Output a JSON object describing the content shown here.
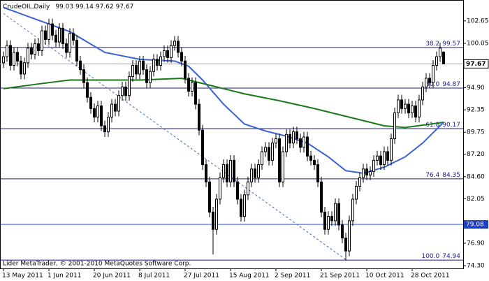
{
  "chart_data": {
    "type": "candlestick",
    "title": "CrudeOIL,Daily",
    "footer": "Lider MetaTrader, © 2001-2010 MetaQuotes Software Corp.",
    "categories": [
      "13 May 2011",
      null,
      null,
      null,
      null,
      null,
      null,
      null,
      null,
      null,
      null,
      null,
      null,
      "1 Jun 2011",
      null,
      null,
      null,
      null,
      null,
      null,
      null,
      null,
      null,
      null,
      null,
      null,
      "20 Jun 2011",
      null,
      null,
      null,
      null,
      null,
      null,
      null,
      null,
      null,
      null,
      null,
      null,
      "8 Jul 2011",
      null,
      null,
      null,
      null,
      null,
      null,
      null,
      null,
      null,
      null,
      null,
      null,
      "27 Jul 2011",
      null,
      null,
      null,
      null,
      null,
      null,
      null,
      null,
      null,
      null,
      null,
      null,
      "15 Aug 2011",
      null,
      null,
      null,
      null,
      null,
      null,
      null,
      null,
      null,
      null,
      null,
      null,
      "2 Sep 2011",
      null,
      null,
      null,
      null,
      null,
      null,
      null,
      null,
      null,
      null,
      null,
      null,
      "21 Sep 2011",
      null,
      null,
      null,
      null,
      null,
      null,
      null,
      null,
      null,
      null,
      null,
      null,
      "10 Oct 2011",
      null,
      null,
      null,
      null,
      null,
      null,
      null,
      null,
      null,
      null,
      null,
      null,
      "28 Oct 2011",
      null,
      null,
      null,
      null,
      null,
      null,
      null,
      null,
      null
    ],
    "ohlc": [
      [
        97.8,
        99.1,
        97.2,
        98.5
      ],
      [
        98.5,
        100.4,
        97.9,
        99.8
      ],
      [
        99.8,
        100.4,
        96.9,
        97.5
      ],
      [
        97.5,
        99.6,
        96.9,
        99.0
      ],
      [
        99.0,
        99.6,
        97.4,
        98.0
      ],
      [
        98.0,
        98.6,
        95.9,
        96.5
      ],
      [
        96.5,
        98.4,
        95.9,
        97.8
      ],
      [
        97.8,
        100.1,
        97.2,
        99.5
      ],
      [
        99.5,
        100.1,
        98.2,
        98.8
      ],
      [
        98.8,
        100.6,
        98.2,
        100.0
      ],
      [
        100.0,
        100.6,
        98.6,
        99.2
      ],
      [
        99.2,
        102.1,
        98.6,
        101.5
      ],
      [
        101.5,
        102.1,
        99.9,
        100.5
      ],
      [
        100.5,
        102.9,
        99.9,
        102.3
      ],
      [
        102.3,
        102.9,
        100.4,
        101.0
      ],
      [
        101.0,
        101.6,
        99.6,
        100.2
      ],
      [
        100.2,
        102.4,
        99.6,
        101.8
      ],
      [
        101.8,
        102.4,
        99.4,
        100.0
      ],
      [
        100.0,
        100.6,
        98.4,
        99.0
      ],
      [
        99.0,
        101.8,
        98.4,
        101.2
      ],
      [
        101.2,
        101.8,
        99.8,
        100.4
      ],
      [
        100.4,
        101.0,
        97.4,
        98.0
      ],
      [
        98.0,
        98.6,
        96.4,
        97.0
      ],
      [
        97.0,
        97.6,
        94.9,
        95.5
      ],
      [
        95.5,
        96.1,
        93.2,
        93.8
      ],
      [
        93.8,
        94.4,
        91.9,
        92.5
      ],
      [
        92.5,
        93.1,
        90.9,
        91.5
      ],
      [
        91.5,
        93.4,
        90.9,
        92.8
      ],
      [
        92.8,
        93.4,
        89.9,
        90.5
      ],
      [
        90.5,
        91.1,
        89.2,
        89.8
      ],
      [
        89.8,
        92.1,
        89.2,
        91.5
      ],
      [
        91.5,
        93.6,
        90.9,
        93.0
      ],
      [
        93.0,
        93.6,
        91.6,
        92.2
      ],
      [
        92.2,
        94.6,
        91.6,
        94.0
      ],
      [
        94.0,
        95.6,
        93.4,
        95.0
      ],
      [
        95.0,
        95.6,
        93.4,
        94.0
      ],
      [
        94.0,
        96.8,
        93.4,
        96.2
      ],
      [
        96.2,
        98.1,
        95.6,
        97.5
      ],
      [
        97.5,
        98.1,
        95.9,
        96.5
      ],
      [
        96.5,
        98.6,
        95.9,
        98.0
      ],
      [
        98.0,
        98.6,
        96.4,
        97.0
      ],
      [
        97.0,
        97.6,
        94.9,
        95.5
      ],
      [
        95.5,
        97.4,
        94.9,
        96.8
      ],
      [
        96.8,
        98.8,
        96.2,
        98.2
      ],
      [
        98.2,
        98.8,
        96.9,
        97.5
      ],
      [
        97.5,
        99.1,
        96.9,
        98.5
      ],
      [
        98.5,
        99.8,
        97.9,
        99.2
      ],
      [
        99.2,
        99.8,
        97.8,
        98.4
      ],
      [
        98.4,
        100.4,
        97.8,
        99.8
      ],
      [
        99.8,
        100.9,
        99.2,
        100.3
      ],
      [
        100.3,
        100.9,
        98.4,
        99.0
      ],
      [
        99.0,
        99.6,
        97.4,
        98.0
      ],
      [
        98.0,
        98.6,
        95.4,
        96.0
      ],
      [
        96.0,
        96.6,
        93.9,
        94.5
      ],
      [
        94.5,
        96.1,
        93.9,
        95.5
      ],
      [
        95.5,
        96.1,
        92.4,
        93.0
      ],
      [
        93.0,
        93.6,
        89.4,
        90.0
      ],
      [
        90.0,
        90.6,
        85.4,
        86.0
      ],
      [
        86.0,
        86.6,
        83.4,
        84.0
      ],
      [
        84.0,
        84.6,
        79.9,
        80.5
      ],
      [
        80.5,
        81.1,
        75.6,
        78.5
      ],
      [
        78.5,
        82.6,
        77.9,
        82.0
      ],
      [
        82.0,
        85.1,
        81.4,
        84.5
      ],
      [
        84.5,
        86.6,
        83.9,
        86.0
      ],
      [
        86.0,
        86.6,
        83.4,
        84.0
      ],
      [
        84.0,
        87.1,
        83.4,
        86.5
      ],
      [
        86.5,
        87.1,
        83.4,
        84.0
      ],
      [
        84.0,
        84.6,
        81.4,
        82.0
      ],
      [
        82.0,
        82.6,
        79.4,
        80.0
      ],
      [
        80.0,
        83.1,
        79.4,
        82.5
      ],
      [
        82.5,
        84.6,
        81.9,
        84.0
      ],
      [
        84.0,
        86.1,
        83.4,
        85.5
      ],
      [
        85.5,
        86.1,
        83.9,
        84.5
      ],
      [
        84.5,
        86.6,
        83.9,
        86.0
      ],
      [
        86.0,
        88.1,
        85.4,
        87.5
      ],
      [
        87.5,
        88.6,
        86.9,
        88.0
      ],
      [
        88.0,
        88.6,
        85.9,
        86.5
      ],
      [
        86.5,
        89.1,
        85.9,
        88.5
      ],
      [
        88.5,
        89.6,
        87.9,
        89.0
      ],
      [
        89.0,
        89.6,
        83.4,
        84.0
      ],
      [
        84.0,
        88.1,
        83.4,
        87.5
      ],
      [
        87.5,
        90.1,
        86.9,
        89.5
      ],
      [
        89.5,
        90.1,
        87.9,
        88.5
      ],
      [
        88.5,
        90.4,
        87.9,
        89.8
      ],
      [
        89.8,
        90.4,
        88.4,
        89.0
      ],
      [
        89.0,
        89.6,
        87.4,
        88.0
      ],
      [
        88.0,
        89.8,
        87.4,
        89.2
      ],
      [
        89.2,
        89.8,
        86.4,
        87.0
      ],
      [
        87.0,
        87.6,
        85.9,
        86.5
      ],
      [
        86.5,
        87.1,
        85.4,
        86.0
      ],
      [
        86.0,
        86.6,
        83.4,
        84.0
      ],
      [
        84.0,
        84.6,
        79.9,
        80.5
      ],
      [
        80.5,
        81.1,
        77.9,
        78.5
      ],
      [
        78.5,
        80.6,
        77.9,
        80.0
      ],
      [
        80.0,
        80.6,
        78.9,
        79.5
      ],
      [
        79.5,
        82.1,
        78.9,
        81.5
      ],
      [
        81.5,
        82.1,
        78.4,
        79.0
      ],
      [
        79.0,
        79.6,
        76.9,
        77.5
      ],
      [
        77.5,
        78.1,
        74.9,
        76.0
      ],
      [
        76.0,
        80.1,
        75.4,
        79.5
      ],
      [
        79.5,
        82.6,
        78.9,
        82.0
      ],
      [
        82.0,
        84.1,
        81.4,
        83.5
      ],
      [
        83.5,
        85.1,
        82.9,
        84.5
      ],
      [
        84.5,
        86.1,
        83.9,
        85.5
      ],
      [
        85.5,
        86.1,
        84.2,
        84.8
      ],
      [
        84.8,
        85.8,
        84.2,
        85.2
      ],
      [
        85.2,
        87.1,
        84.6,
        86.5
      ],
      [
        86.5,
        87.6,
        85.9,
        87.0
      ],
      [
        87.0,
        87.6,
        85.4,
        86.0
      ],
      [
        86.0,
        88.1,
        85.4,
        87.5
      ],
      [
        87.5,
        88.1,
        85.9,
        86.5
      ],
      [
        86.5,
        89.6,
        85.9,
        89.0
      ],
      [
        89.0,
        92.6,
        88.4,
        92.0
      ],
      [
        92.0,
        94.1,
        91.4,
        93.5
      ],
      [
        93.5,
        94.1,
        91.9,
        92.5
      ],
      [
        92.5,
        93.6,
        91.9,
        93.0
      ],
      [
        93.0,
        93.6,
        91.4,
        92.0
      ],
      [
        92.0,
        93.4,
        91.4,
        92.8
      ],
      [
        92.8,
        93.4,
        90.9,
        91.5
      ],
      [
        91.5,
        94.1,
        90.9,
        93.5
      ],
      [
        93.5,
        95.6,
        92.9,
        95.0
      ],
      [
        95.0,
        96.6,
        94.4,
        96.0
      ],
      [
        96.0,
        96.6,
        94.9,
        95.5
      ],
      [
        95.5,
        98.1,
        94.9,
        97.5
      ],
      [
        97.5,
        99.1,
        96.9,
        98.5
      ],
      [
        98.5,
        100.1,
        97.9,
        99.5
      ],
      [
        99.03,
        99.14,
        97.62,
        97.67
      ]
    ],
    "up_color": "#ffffff",
    "down_color": "#000000",
    "moving_averages": [
      {
        "color": "#3a62d6",
        "x": [
          0,
          19,
          29,
          39,
          49,
          53,
          57,
          63,
          69,
          75,
          81,
          87,
          93,
          98,
          103,
          109,
          115,
          120,
          126
        ],
        "values": [
          104.2,
          101.4,
          99.0,
          98.2,
          98.0,
          97.4,
          95.8,
          93.0,
          90.7,
          89.9,
          89.3,
          88.5,
          86.9,
          85.3,
          85.0,
          85.7,
          86.9,
          88.5,
          90.9
        ]
      },
      {
        "color": "#1a7a1a",
        "x": [
          0,
          11,
          19,
          29,
          39,
          51,
          59,
          69,
          79,
          89,
          99,
          109,
          115,
          126
        ],
        "values": [
          94.8,
          95.4,
          95.8,
          95.8,
          95.8,
          96.0,
          95.2,
          94.2,
          93.4,
          92.5,
          91.5,
          90.5,
          90.3,
          90.9
        ]
      }
    ],
    "fib_levels": [
      {
        "label": "38.2",
        "value": 99.57
      },
      {
        "label": "50.0",
        "value": 94.87
      },
      {
        "label": "61.8",
        "value": 90.17
      },
      {
        "label": "76.4",
        "value": 84.35
      },
      {
        "label": "100.0",
        "value": 74.94
      }
    ],
    "fib_color": "#1c1c8c",
    "hlines": [
      {
        "value": 79.08,
        "color": "#1f3fbf"
      }
    ],
    "trendline": {
      "x": [
        0,
        98
      ],
      "values": [
        103.5,
        75.0
      ],
      "color": "#4a6bd0"
    },
    "ylim": [
      73.98,
      105.07
    ],
    "yticks": [
      102.65,
      100.05,
      {
        "value": 94.9,
        "label": "94.90"
      },
      92.35,
      89.75,
      {
        "value": 87.2,
        "label": "87.20"
      },
      {
        "value": 84.6,
        "label": "84.60"
      },
      82.05,
      {
        "value": 76.9,
        "label": "76.90"
      },
      {
        "value": 74.3,
        "label": "74.30"
      }
    ]
  }
}
